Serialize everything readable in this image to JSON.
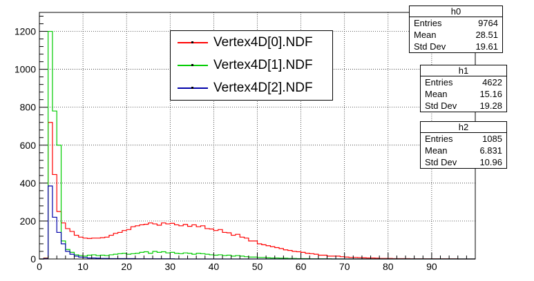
{
  "chart_data": {
    "type": "histogram",
    "title": "",
    "xlabel": "",
    "ylabel": "",
    "xlim": [
      0,
      100
    ],
    "ylim": [
      0,
      1300
    ],
    "bin_width": 1,
    "x_ticks": [
      0,
      10,
      20,
      30,
      40,
      50,
      60,
      70,
      80,
      90
    ],
    "y_ticks": [
      0,
      200,
      400,
      600,
      800,
      1000,
      1200
    ],
    "grid": true,
    "legend_position": "top-center",
    "series": [
      {
        "name": "Vertex4D[0].NDF",
        "color": "#ff0000",
        "values": [
          0,
          5,
          720,
          445,
          250,
          190,
          160,
          145,
          125,
          115,
          110,
          108,
          110,
          110,
          112,
          115,
          125,
          135,
          140,
          150,
          155,
          170,
          175,
          180,
          183,
          190,
          185,
          178,
          190,
          185,
          188,
          180,
          175,
          182,
          172,
          180,
          170,
          175,
          160,
          158,
          150,
          155,
          140,
          138,
          125,
          130,
          115,
          110,
          95,
          95,
          80,
          75,
          70,
          65,
          60,
          55,
          48,
          45,
          40,
          38,
          35,
          30,
          28,
          25,
          20,
          20,
          15,
          15,
          15,
          12,
          10,
          8,
          8,
          7,
          6,
          5,
          5,
          4,
          3,
          3,
          3,
          2,
          2,
          2,
          2,
          1,
          1,
          1,
          1,
          1,
          1,
          1,
          1,
          1,
          1,
          1,
          0,
          0,
          0,
          0
        ]
      },
      {
        "name": "Vertex4D[1].NDF",
        "color": "#00cc00",
        "values": [
          0,
          3,
          1200,
          780,
          600,
          95,
          50,
          35,
          22,
          18,
          15,
          20,
          22,
          18,
          20,
          18,
          22,
          25,
          28,
          30,
          25,
          28,
          30,
          35,
          38,
          30,
          40,
          35,
          38,
          32,
          35,
          30,
          28,
          32,
          30,
          25,
          30,
          28,
          25,
          22,
          20,
          22,
          18,
          20,
          15,
          18,
          15,
          12,
          10,
          10,
          8,
          8,
          6,
          5,
          5,
          4,
          4,
          3,
          3,
          2,
          2,
          2,
          1,
          1,
          1,
          1,
          1,
          0,
          0,
          0,
          0,
          0,
          0,
          0,
          0,
          0,
          0,
          0,
          0,
          0,
          0,
          0,
          0,
          0,
          0,
          0,
          0,
          0,
          0,
          0,
          0,
          0,
          0,
          0,
          0,
          0,
          0,
          0,
          0,
          0
        ]
      },
      {
        "name": "Vertex4D[2].NDF",
        "color": "#0000aa",
        "values": [
          0,
          2,
          385,
          220,
          140,
          80,
          40,
          25,
          15,
          10,
          8,
          5,
          5,
          4,
          3,
          3,
          2,
          2,
          2,
          2,
          2,
          2,
          1,
          1,
          1,
          1,
          1,
          1,
          1,
          1,
          1,
          0,
          0,
          0,
          0,
          0,
          0,
          0,
          0,
          0,
          0,
          0,
          0,
          0,
          0,
          0,
          0,
          0,
          0,
          0,
          0,
          0,
          0,
          0,
          0,
          0,
          0,
          0,
          0,
          0,
          0,
          0,
          0,
          0,
          0,
          0,
          0,
          0,
          0,
          0,
          0,
          0,
          0,
          0,
          0,
          0,
          0,
          0,
          0,
          0,
          0,
          0,
          0,
          0,
          0,
          0,
          0,
          0,
          0,
          0,
          0,
          0,
          0,
          0,
          0,
          0,
          0,
          0,
          0,
          0
        ]
      }
    ]
  },
  "stats": [
    {
      "name": "h0",
      "entries_label": "Entries",
      "entries": "9764",
      "mean_label": "Mean",
      "mean": "28.51",
      "std_label": "Std Dev",
      "std": "19.61"
    },
    {
      "name": "h1",
      "entries_label": "Entries",
      "entries": "4622",
      "mean_label": "Mean",
      "mean": "15.16",
      "std_label": "Std Dev",
      "std": "19.28"
    },
    {
      "name": "h2",
      "entries_label": "Entries",
      "entries": "1085",
      "mean_label": "Mean",
      "mean": "6.831",
      "std_label": "Std Dev",
      "std": "10.96"
    }
  ]
}
